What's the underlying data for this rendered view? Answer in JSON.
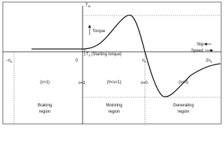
{
  "axis_labels": {
    "tm": {
      "main": "T",
      "sub": "m"
    },
    "torque": "Torque",
    "slip": "Slip",
    "speed": "Speed",
    "ts": {
      "main": "T",
      "sub": "s",
      "note": "(Starting torque)"
    },
    "neg_ns": {
      "main": "−n",
      "sub": "s"
    },
    "zero": "0",
    "ns": {
      "main": "n",
      "sub": "s"
    },
    "two_ns": {
      "main": "2n",
      "sub": "s"
    }
  },
  "boundaries": [
    "s=1",
    "s=0"
  ],
  "regions": [
    {
      "condition": "(s>1)",
      "name": [
        "Braking",
        "region"
      ]
    },
    {
      "condition": "(0<s<1)",
      "name": [
        "Motoring",
        "region"
      ]
    },
    {
      "condition": "(s<0)",
      "name": [
        "Generating",
        "region"
      ]
    }
  ]
}
